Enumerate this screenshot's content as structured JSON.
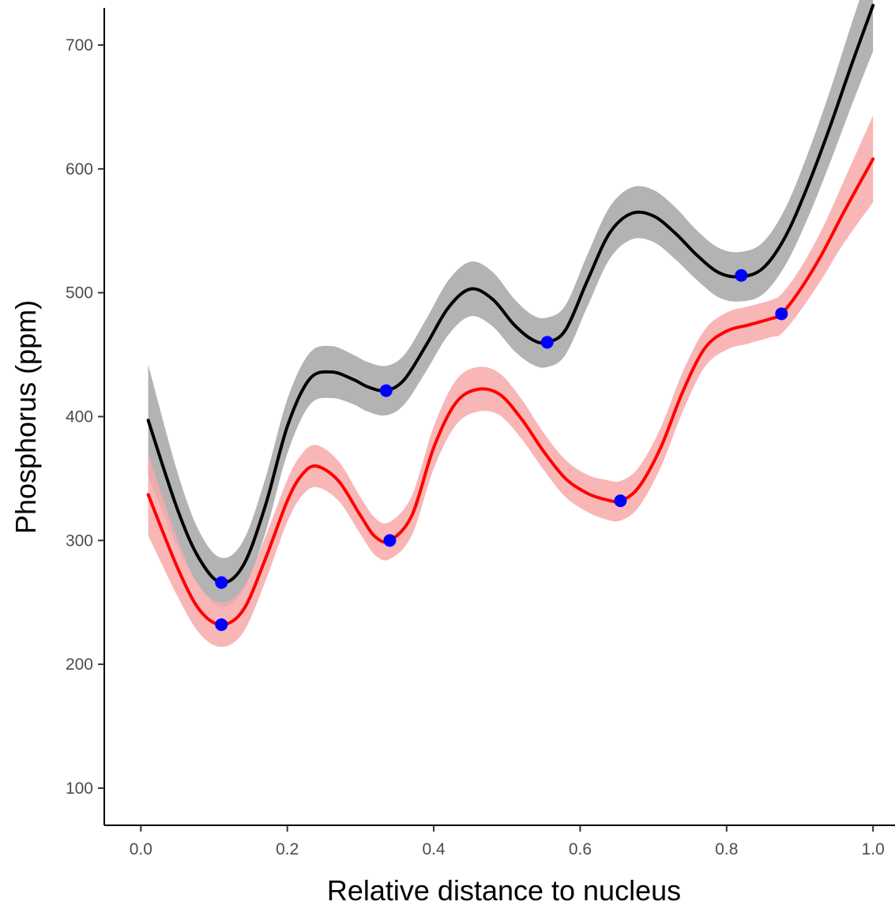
{
  "chart_data": {
    "type": "line",
    "title": "",
    "xlabel": "Relative distance to nucleus",
    "ylabel": "Phosphorus (ppm)",
    "xlim": [
      -0.05,
      1.03
    ],
    "ylim": [
      70,
      730
    ],
    "xticks": [
      0.0,
      0.2,
      0.4,
      0.6,
      0.8,
      1.0
    ],
    "xtick_labels": [
      "0.0",
      "0.2",
      "0.4",
      "0.6",
      "0.8",
      "1.0"
    ],
    "yticks": [
      100,
      200,
      300,
      400,
      500,
      600,
      700
    ],
    "ytick_labels": [
      "100",
      "200",
      "300",
      "400",
      "500",
      "600",
      "700"
    ],
    "grid": false,
    "legend": "none",
    "series": [
      {
        "color": "#000000",
        "band_color": "#a6a6a6",
        "x": [
          0.01,
          0.05,
          0.08,
          0.11,
          0.14,
          0.17,
          0.2,
          0.23,
          0.26,
          0.29,
          0.31,
          0.335,
          0.36,
          0.39,
          0.42,
          0.45,
          0.48,
          0.51,
          0.535,
          0.555,
          0.58,
          0.61,
          0.64,
          0.67,
          0.7,
          0.73,
          0.76,
          0.79,
          0.82,
          0.85,
          0.88,
          0.91,
          0.94,
          0.97,
          1.0
        ],
        "y": [
          397,
          325,
          285,
          266,
          280,
          328,
          392,
          430,
          436,
          430,
          424,
          421,
          430,
          458,
          488,
          503,
          495,
          474,
          462,
          460,
          470,
          510,
          548,
          564,
          562,
          548,
          530,
          516,
          513,
          520,
          545,
          585,
          632,
          683,
          732
        ],
        "band_halfwidth": [
          45,
          30,
          22,
          20,
          20,
          22,
          22,
          21,
          21,
          20,
          20,
          20,
          20,
          21,
          22,
          22,
          22,
          21,
          20,
          20,
          20,
          21,
          21,
          21,
          21,
          21,
          20,
          20,
          20,
          21,
          23,
          26,
          29,
          33,
          37
        ]
      },
      {
        "color": "#ff0000",
        "band_color": "#f8a9a9",
        "x": [
          0.01,
          0.05,
          0.08,
          0.11,
          0.14,
          0.17,
          0.2,
          0.22,
          0.24,
          0.27,
          0.3,
          0.32,
          0.34,
          0.37,
          0.4,
          0.43,
          0.46,
          0.49,
          0.52,
          0.55,
          0.58,
          0.61,
          0.635,
          0.655,
          0.68,
          0.71,
          0.74,
          0.77,
          0.8,
          0.83,
          0.86,
          0.875,
          0.9,
          0.93,
          0.96,
          1.0
        ],
        "y": [
          337,
          278,
          244,
          232,
          244,
          285,
          332,
          353,
          360,
          348,
          320,
          303,
          300,
          320,
          375,
          411,
          422,
          418,
          398,
          372,
          350,
          338,
          333,
          332,
          343,
          375,
          420,
          455,
          469,
          474,
          479,
          483,
          502,
          531,
          565,
          608
        ],
        "band_halfwidth": [
          33,
          23,
          19,
          18,
          18,
          18,
          17,
          17,
          17,
          16,
          15,
          15,
          15,
          16,
          17,
          18,
          18,
          17,
          16,
          15,
          15,
          15,
          16,
          16,
          16,
          16,
          16,
          15,
          15,
          15,
          15,
          16,
          17,
          20,
          25,
          35
        ]
      }
    ],
    "points": {
      "color": "#0000ff",
      "x": [
        0.11,
        0.335,
        0.555,
        0.82,
        0.11,
        0.34,
        0.655,
        0.875
      ],
      "y": [
        266,
        421,
        460,
        514,
        232,
        300,
        332,
        483
      ]
    }
  }
}
